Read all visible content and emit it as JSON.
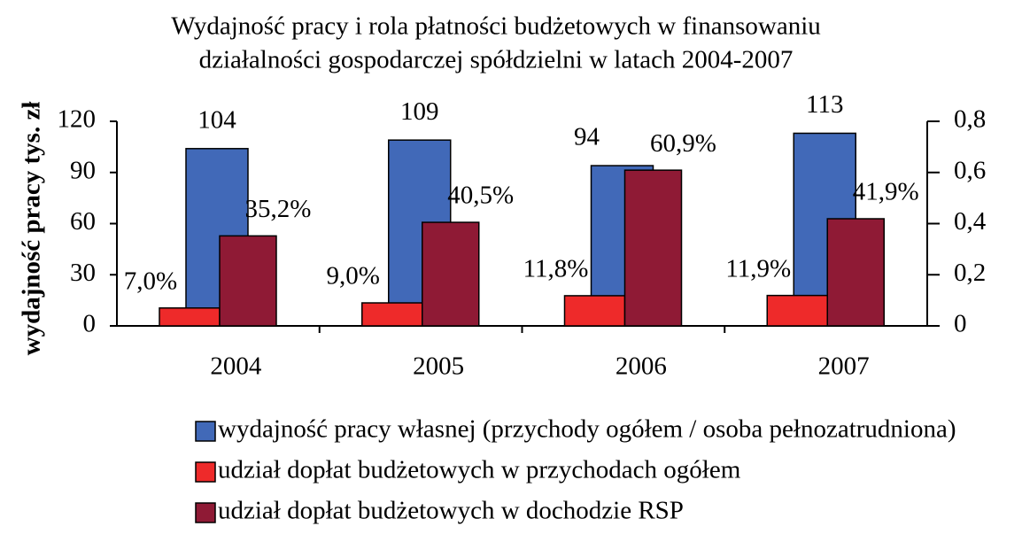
{
  "chart_data": {
    "type": "bar",
    "title": [
      "Wydajność pracy i rola płatności budżetowych w finansowaniu",
      "działalności gospodarczej spółdzielni w latach 2004-2007"
    ],
    "ylabel": "wydajność pracy tys. zł",
    "categories": [
      "2004",
      "2005",
      "2006",
      "2007"
    ],
    "ylim": [
      0,
      120
    ],
    "yticks": [
      0,
      30,
      60,
      90,
      120
    ],
    "y2lim": [
      0,
      0.8
    ],
    "y2ticks": [
      0,
      {
        "value": 0.2,
        "label": "0,2"
      },
      {
        "value": 0.4,
        "label": "0,4"
      },
      {
        "value": 0.6,
        "label": "0,6"
      },
      {
        "value": 0.8,
        "label": "0,8"
      }
    ],
    "series": [
      {
        "name": "wydajność pracy własnej (przychody ogółem / osoba pełnozatrudniona)",
        "color": "#4169b8",
        "values": [
          104,
          109,
          94,
          113
        ]
      },
      {
        "name": "udział dopłat budżetowych w przychodach ogółem",
        "color": "#ee2a2a",
        "axis": "y2",
        "values": [
          0.07,
          0.09,
          0.118,
          0.119
        ],
        "value_labels": [
          "7,0%",
          "9,0%",
          "11,8%",
          "11,9%"
        ]
      },
      {
        "name": "udział dopłat budżetowych w dochodzie RSP",
        "color": "#8f1a35",
        "axis": "y2",
        "values": [
          0.352,
          0.405,
          0.609,
          0.419
        ],
        "value_labels": [
          "35,2%",
          "40,5%",
          "60,9%",
          "41,9%"
        ]
      }
    ],
    "legend": "bottom"
  }
}
